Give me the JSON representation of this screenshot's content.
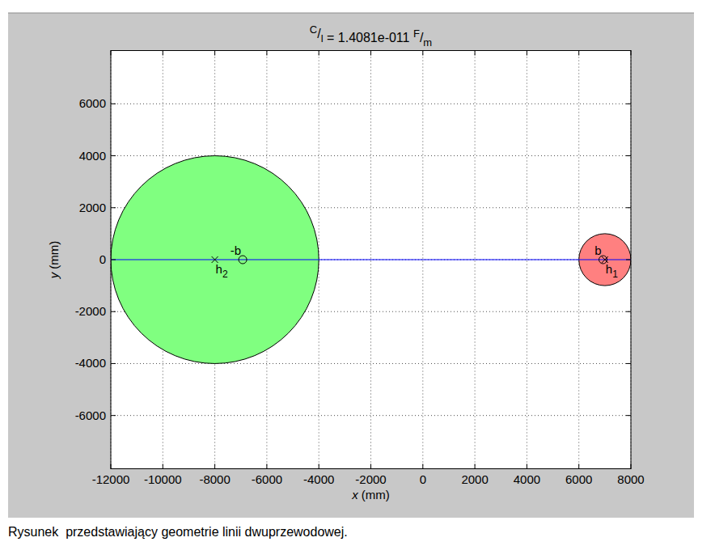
{
  "chart_data": {
    "type": "scatter",
    "title": "C/l = 1.4081e-011 F/m",
    "x_label": "x (mm)",
    "y_label": "y (mm)",
    "xlim": [
      -12000,
      8000
    ],
    "ylim": [
      -8050,
      8050
    ],
    "xticks": [
      -12000,
      -10000,
      -8000,
      -6000,
      -4000,
      -2000,
      0,
      2000,
      4000,
      6000,
      8000
    ],
    "yticks": [
      -6000,
      -4000,
      -2000,
      0,
      2000,
      4000,
      6000
    ],
    "grid": true,
    "series": [
      {
        "type": "circle",
        "color": "#80ff80",
        "x": [
          -8000
        ],
        "values": [
          0
        ],
        "radius": [
          4000
        ]
      },
      {
        "type": "circle",
        "color": "#ff8080",
        "x": [
          7000
        ],
        "values": [
          0
        ],
        "radius": [
          1000
        ]
      },
      {
        "type": "line",
        "color": "#0000ff",
        "x": [
          -12000,
          8000
        ],
        "values": [
          0,
          0
        ]
      },
      {
        "type": "scatter",
        "marker": "x",
        "color": "#000000",
        "x": [
          -8000,
          7000
        ],
        "values": [
          0,
          0
        ],
        "point_labels": [
          "h2",
          "h1"
        ]
      },
      {
        "type": "scatter",
        "marker": "o",
        "color": "#000000",
        "x": [
          -6928,
          6928
        ],
        "values": [
          0,
          0
        ],
        "point_labels": [
          "-b",
          "b"
        ]
      }
    ]
  },
  "caption": "Rysunek  przedstawiający geometrie linii dwuprzewodowej."
}
